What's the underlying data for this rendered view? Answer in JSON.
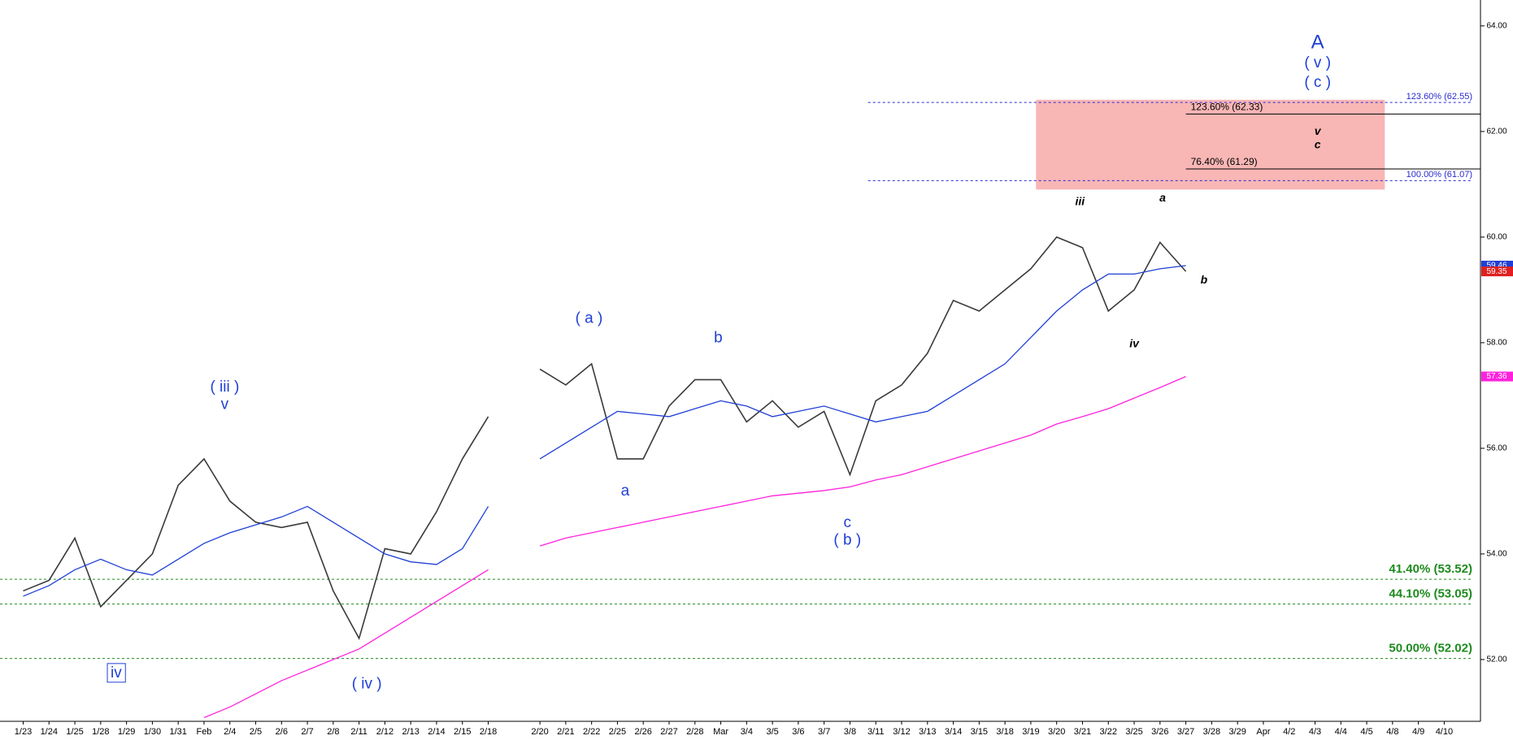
{
  "chart_data": {
    "type": "line",
    "categories": [
      "1/23",
      "1/24",
      "1/25",
      "1/28",
      "1/29",
      "1/30",
      "1/31",
      "Feb",
      "2/4",
      "2/5",
      "2/6",
      "2/7",
      "2/8",
      "2/11",
      "2/12",
      "2/13",
      "2/14",
      "2/15",
      "2/18",
      null,
      "2/20",
      "2/21",
      "2/22",
      "2/25",
      "2/26",
      "2/27",
      "2/28",
      "Mar",
      "3/4",
      "3/5",
      "3/6",
      "3/7",
      "3/8",
      "3/11",
      "3/12",
      "3/13",
      "3/14",
      "3/15",
      "3/18",
      "3/19",
      "3/20",
      "3/21",
      "3/22",
      "3/25",
      "3/26",
      "3/27",
      "3/28",
      "3/29",
      "Apr",
      "4/2",
      "4/3",
      "4/4",
      "4/5",
      "4/8",
      "4/9",
      "4/10"
    ],
    "series": [
      {
        "name": "Price",
        "color": "#3a3a3a",
        "values": [
          53.3,
          53.5,
          54.3,
          53.0,
          53.5,
          54.0,
          55.3,
          55.8,
          55.0,
          54.6,
          54.5,
          54.6,
          53.3,
          52.4,
          54.1,
          54.0,
          54.8,
          55.8,
          56.6,
          null,
          57.5,
          57.2,
          57.6,
          55.8,
          55.8,
          56.8,
          57.3,
          57.3,
          56.5,
          56.9,
          56.4,
          56.7,
          55.5,
          56.9,
          57.2,
          57.8,
          58.8,
          58.6,
          59.0,
          59.4,
          60.0,
          59.8,
          58.6,
          59.0,
          59.9,
          59.35,
          null,
          null,
          null,
          null,
          null,
          null,
          null,
          null,
          null,
          null
        ]
      },
      {
        "name": "MA short",
        "color": "#1f3fd6",
        "values": [
          53.2,
          53.4,
          53.7,
          53.9,
          53.7,
          53.6,
          53.9,
          54.2,
          54.4,
          54.55,
          54.7,
          54.9,
          54.6,
          54.3,
          54.0,
          53.85,
          53.8,
          54.1,
          54.9,
          null,
          55.8,
          56.1,
          56.4,
          56.7,
          56.65,
          56.6,
          56.75,
          56.9,
          56.8,
          56.6,
          56.7,
          56.8,
          56.65,
          56.5,
          56.6,
          56.7,
          57.0,
          57.3,
          57.6,
          58.1,
          58.6,
          59.0,
          59.3,
          59.3,
          59.4,
          59.46,
          null,
          null,
          null,
          null,
          null,
          null,
          null,
          null,
          null,
          null
        ]
      },
      {
        "name": "MA long",
        "color": "#ff22dd",
        "values": [
          null,
          null,
          null,
          null,
          null,
          null,
          null,
          50.9,
          51.1,
          51.35,
          51.6,
          51.8,
          52.0,
          52.2,
          52.5,
          52.8,
          53.1,
          53.4,
          53.7,
          null,
          54.15,
          54.3,
          54.4,
          54.5,
          54.6,
          54.7,
          54.8,
          54.9,
          55.0,
          55.1,
          55.15,
          55.2,
          55.27,
          55.4,
          55.5,
          55.65,
          55.8,
          55.95,
          56.1,
          56.25,
          56.46,
          56.6,
          56.75,
          56.95,
          57.15,
          57.36,
          null,
          null,
          null,
          null,
          null,
          null,
          null,
          null,
          null,
          null
        ]
      }
    ],
    "ylim": [
      50.83,
      64.49
    ],
    "yticks": [
      {
        "value": 52,
        "label": "52.00"
      },
      {
        "value": 54,
        "label": "54.00"
      },
      {
        "value": 56,
        "label": "56.00"
      },
      {
        "value": 58,
        "label": "58.00"
      },
      {
        "value": 60,
        "label": "60.00"
      },
      {
        "value": 62,
        "label": "62.00"
      },
      {
        "value": 64,
        "label": "64.00"
      }
    ],
    "last_values": [
      {
        "value": 59.46,
        "color": "#1f3fd6"
      },
      {
        "value": 59.35,
        "color": "#e02020"
      },
      {
        "value": 57.36,
        "color": "#ff22dd"
      }
    ],
    "zone": {
      "x": [
        39.2,
        52.7
      ],
      "y": [
        60.9,
        62.6
      ],
      "color": "#f7a9a8"
    },
    "levels": [
      {
        "value": 62.55,
        "label": "123.60% (62.55)",
        "color": "#2a2ad0",
        "start": 32.7,
        "style": "dotted",
        "label_side": "right"
      },
      {
        "value": 61.07,
        "label": "100.00% (61.07)",
        "color": "#2a2ad0",
        "start": 32.7,
        "style": "dotted",
        "label_side": "right"
      },
      {
        "value": 62.33,
        "label": "123.60% (62.33)",
        "color": "#000000",
        "start": 45,
        "style": "solid",
        "label_side": "left"
      },
      {
        "value": 61.29,
        "label": "76.40% (61.29)",
        "color": "#000000",
        "start": 45,
        "style": "solid",
        "label_side": "left"
      },
      {
        "value": 53.52,
        "label": "41.40% (53.52)",
        "color": "#1e8a1e",
        "style": "dotted",
        "label_side": "right"
      },
      {
        "value": 53.05,
        "label": "44.10% (53.05)",
        "color": "#1e8a1e",
        "style": "dotted",
        "label_side": "right"
      },
      {
        "value": 52.02,
        "label": "50.00% (52.02)",
        "color": "#1e8a1e",
        "style": "dotted",
        "label_side": "right"
      }
    ],
    "annotations": [
      {
        "text": "( iii )",
        "x": 7.8,
        "y": 57.15,
        "color": "#1f3fd6"
      },
      {
        "text": "v",
        "x": 7.8,
        "y": 56.82,
        "color": "#1f3fd6"
      },
      {
        "text": "iv",
        "x": 3.6,
        "y": 51.74,
        "color": "#1f3fd6",
        "boxed": true
      },
      {
        "text": "( iv )",
        "x": 13.3,
        "y": 51.53,
        "color": "#1f3fd6"
      },
      {
        "text": "( a )",
        "x": 21.9,
        "y": 58.45,
        "color": "#1f3fd6"
      },
      {
        "text": "a",
        "x": 23.3,
        "y": 55.18,
        "color": "#1f3fd6"
      },
      {
        "text": "b",
        "x": 26.9,
        "y": 58.08,
        "color": "#1f3fd6"
      },
      {
        "text": "c",
        "x": 31.9,
        "y": 54.58,
        "color": "#1f3fd6"
      },
      {
        "text": "( b )",
        "x": 31.9,
        "y": 54.25,
        "color": "#1f3fd6"
      },
      {
        "text": "iii",
        "x": 40.9,
        "y": 60.66,
        "color": "#000000",
        "italic": true
      },
      {
        "text": "a",
        "x": 44.1,
        "y": 60.73,
        "color": "#000000",
        "italic": true
      },
      {
        "text": "b",
        "x": 45.7,
        "y": 59.18,
        "color": "#000000",
        "italic": true
      },
      {
        "text": "iv",
        "x": 43.0,
        "y": 57.97,
        "color": "#000000",
        "italic": true
      },
      {
        "text": "A",
        "x": 50.1,
        "y": 63.67,
        "color": "#1f3fd6",
        "large": true
      },
      {
        "text": "( v )",
        "x": 50.1,
        "y": 63.29,
        "color": "#1f3fd6"
      },
      {
        "text": "( c )",
        "x": 50.1,
        "y": 62.92,
        "color": "#1f3fd6"
      },
      {
        "text": "v",
        "x": 50.1,
        "y": 61.99,
        "color": "#000000",
        "italic": true
      },
      {
        "text": "c",
        "x": 50.1,
        "y": 61.74,
        "color": "#000000",
        "italic": true
      }
    ]
  }
}
